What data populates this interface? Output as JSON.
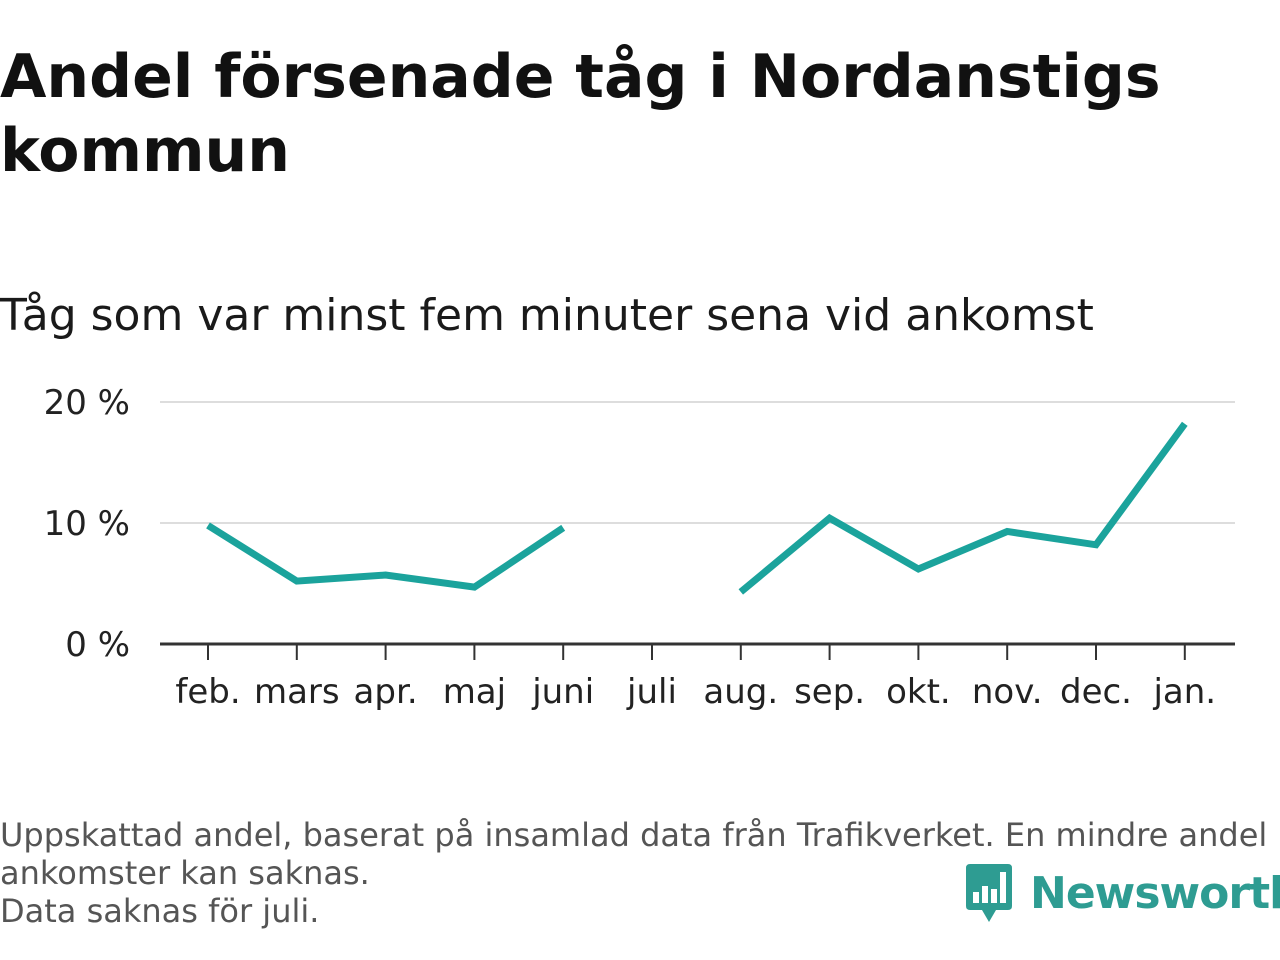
{
  "chart_data": {
    "type": "line",
    "title": "Andel försenade tåg i Nordanstigs kommun",
    "subtitle": "Tåg som var minst fem minuter sena vid ankomst",
    "categories": [
      "feb.",
      "mars",
      "apr.",
      "maj",
      "juni",
      "juli",
      "aug.",
      "sep.",
      "okt.",
      "nov.",
      "dec.",
      "jan."
    ],
    "series": [
      {
        "values": [
          9.8,
          5.2,
          5.7,
          4.7,
          9.6,
          null,
          4.3,
          10.4,
          6.2,
          9.3,
          8.2,
          18.2
        ]
      }
    ],
    "yticks": [
      "0 %",
      "10 %",
      "20 %"
    ],
    "ylim": [
      0,
      20
    ],
    "grid": true,
    "line_color": "#1ba39c"
  },
  "footer": {
    "note_line1": "Uppskattad andel, baserat på insamlad data från Trafikverket. En mindre andel",
    "note_line2": "ankomster kan saknas.",
    "note_line3": "Data saknas för juli."
  },
  "brand": {
    "name": "Newsworthy",
    "icon": "newsworthy-logo-icon",
    "color": "#2e9c92"
  }
}
